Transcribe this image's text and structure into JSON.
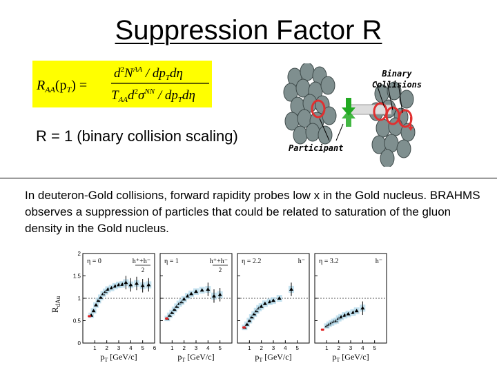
{
  "slide": {
    "title": "Suppression Factor R",
    "ratio_statement": "R = 1 (binary collision scaling)",
    "body": "In deuteron-Gold collisions, forward rapidity probes low x in the Gold nucleus.  BRAHMS observes a suppression of particles that could be related to saturation of the gluon density in the Gold nucleus."
  },
  "formula": {
    "lhs": "R",
    "lhs_sub": "AA",
    "lhs_arg": "(p",
    "lhs_arg_sub": "T",
    "lhs_arg_close": ") =",
    "num_prefix": "d",
    "num_exp": "2",
    "num_mid": "N",
    "num_sup": "AA",
    "num_tail": " / dp",
    "num_tail_sub": "T",
    "num_end": "dη",
    "den_prefix": "T",
    "den_prefix_sub": "AA",
    "den_d": "d",
    "den_exp": "2",
    "den_sigma": "σ",
    "den_sup": "NN",
    "den_tail": " / dp",
    "den_tail_sub": "T",
    "den_end": "dη"
  },
  "diagram": {
    "binary_label_line1": "Binary",
    "binary_label_line2": "Collisions",
    "participant_label": "Participant",
    "colors": {
      "nucleon": "#7f8f8f",
      "participant": "#e03030",
      "arrow": "#22aa22",
      "highlight": "#dddddd"
    }
  },
  "chart_data": {
    "type": "scatter",
    "ylabel": "R",
    "ylabel_sub": "dAu",
    "xlabel": "p",
    "xlabel_sub": "T",
    "xlabel_unit": " [GeV/c]",
    "ylim": [
      0,
      2
    ],
    "yticks": [
      "0",
      "0.5",
      "1",
      "1.5",
      "2"
    ],
    "reference_line": 1,
    "panels": [
      {
        "eta_label": "η = 0",
        "species_label": "h⁺+h⁻",
        "species_sub": "2",
        "xticks": [
          "1",
          "2",
          "3",
          "4",
          "5",
          "6"
        ],
        "xlim": [
          0,
          6
        ],
        "points": [
          [
            0.7,
            0.62
          ],
          [
            0.9,
            0.72
          ],
          [
            1.1,
            0.85
          ],
          [
            1.3,
            0.95
          ],
          [
            1.5,
            1.02
          ],
          [
            1.7,
            1.1
          ],
          [
            1.9,
            1.15
          ],
          [
            2.1,
            1.2
          ],
          [
            2.4,
            1.23
          ],
          [
            2.7,
            1.27
          ],
          [
            3.0,
            1.3
          ],
          [
            3.3,
            1.31
          ],
          [
            3.6,
            1.35
          ],
          [
            4.0,
            1.3
          ],
          [
            4.5,
            1.33
          ],
          [
            5.0,
            1.28
          ],
          [
            5.5,
            1.3
          ]
        ],
        "ref_points": [
          [
            0.5,
            0.6
          ],
          [
            0.6,
            0.6
          ]
        ]
      },
      {
        "eta_label": "η = 1",
        "species_label": "h⁺+h⁻",
        "species_sub": "2",
        "xticks": [
          "1",
          "2",
          "3",
          "4",
          "5"
        ],
        "xlim": [
          0,
          6
        ],
        "points": [
          [
            0.6,
            0.55
          ],
          [
            0.8,
            0.62
          ],
          [
            1.0,
            0.68
          ],
          [
            1.2,
            0.75
          ],
          [
            1.4,
            0.82
          ],
          [
            1.6,
            0.88
          ],
          [
            1.8,
            0.92
          ],
          [
            2.0,
            0.98
          ],
          [
            2.3,
            1.05
          ],
          [
            2.6,
            1.1
          ],
          [
            3.0,
            1.15
          ],
          [
            3.5,
            1.18
          ],
          [
            4.0,
            1.2
          ],
          [
            4.5,
            1.05
          ],
          [
            5.0,
            1.08
          ]
        ],
        "ref_points": [
          [
            0.5,
            0.55
          ],
          [
            0.6,
            0.55
          ]
        ]
      },
      {
        "eta_label": "η = 2.2",
        "species_label": "h⁻",
        "species_sub": "",
        "xticks": [
          "1",
          "2",
          "3",
          "4",
          "5"
        ],
        "xlim": [
          0,
          6
        ],
        "points": [
          [
            0.6,
            0.35
          ],
          [
            0.8,
            0.42
          ],
          [
            1.0,
            0.5
          ],
          [
            1.2,
            0.58
          ],
          [
            1.4,
            0.65
          ],
          [
            1.6,
            0.72
          ],
          [
            1.8,
            0.78
          ],
          [
            2.0,
            0.82
          ],
          [
            2.3,
            0.88
          ],
          [
            2.7,
            0.92
          ],
          [
            3.0,
            0.95
          ],
          [
            3.5,
            1.0
          ],
          [
            4.5,
            1.2
          ]
        ],
        "ref_points": [
          [
            0.5,
            0.35
          ],
          [
            0.6,
            0.35
          ]
        ]
      },
      {
        "eta_label": "η = 3.2",
        "species_label": "h⁻",
        "species_sub": "",
        "xticks": [
          "1",
          "2",
          "3",
          "4",
          "5"
        ],
        "xlim": [
          0,
          6
        ],
        "points": [
          [
            1.0,
            0.38
          ],
          [
            1.2,
            0.42
          ],
          [
            1.4,
            0.45
          ],
          [
            1.6,
            0.48
          ],
          [
            1.8,
            0.5
          ],
          [
            2.0,
            0.55
          ],
          [
            2.2,
            0.58
          ],
          [
            2.5,
            0.62
          ],
          [
            2.8,
            0.65
          ],
          [
            3.2,
            0.68
          ],
          [
            3.5,
            0.72
          ],
          [
            4.0,
            0.78
          ]
        ],
        "ref_points": [
          [
            0.6,
            0.3
          ],
          [
            0.7,
            0.3
          ]
        ]
      }
    ]
  }
}
